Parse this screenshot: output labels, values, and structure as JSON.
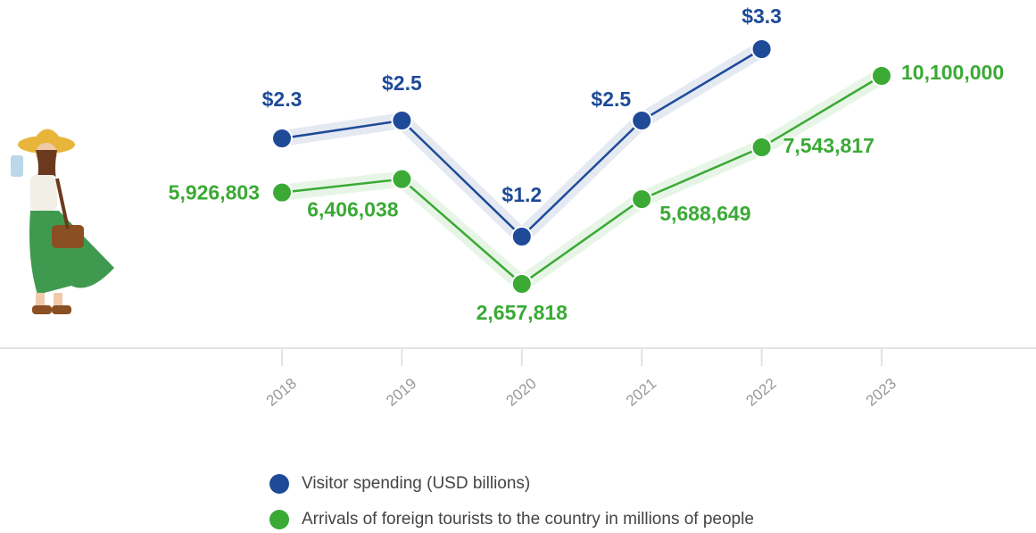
{
  "chart_data": {
    "type": "line",
    "categories": [
      "2018",
      "2019",
      "2020",
      "2021",
      "2022",
      "2023"
    ],
    "series": [
      {
        "name": "Visitor spending (USD billions)",
        "color": "#1e4a98",
        "values": [
          2.3,
          2.5,
          1.2,
          2.5,
          3.3,
          null
        ],
        "value_labels": [
          "$2.3",
          "$2.5",
          "$1.2",
          "$2.5",
          "$3.3",
          null
        ]
      },
      {
        "name": "Arrivals of foreign tourists to the country in millions of people",
        "color": "#3aaa35",
        "values": [
          5926803,
          6406038,
          2657818,
          5688649,
          7543817,
          10100000
        ],
        "value_labels": [
          "5,926,803",
          "6,406,038",
          "2,657,818",
          "5,688,649",
          "7,543,817",
          "10,100,000"
        ]
      }
    ]
  }
}
